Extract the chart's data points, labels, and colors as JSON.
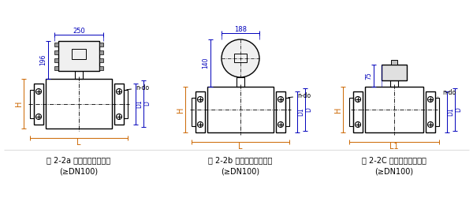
{
  "bg_color": "#ffffff",
  "lc": "#000000",
  "dc": "#0000bb",
  "oc": "#cc6600",
  "fig_w": 6.0,
  "fig_h": 2.74,
  "dpi": 100,
  "captions": [
    [
      "图 2-2a 一体型电磁流量计",
      "(≥DN100)"
    ],
    [
      "图 2-2b 一体型电磁流量计",
      "(≥DN100)"
    ],
    [
      "图 2-2C 分离型电磁流量计",
      "(≥DN100)"
    ]
  ],
  "dim_labels": {
    "250": "250",
    "188": "188",
    "196": "196",
    "140": "140",
    "75": "75",
    "H": "H",
    "L": "L",
    "L1": "L1",
    "D": "D",
    "D1": "D1",
    "ndo": "n-do"
  }
}
